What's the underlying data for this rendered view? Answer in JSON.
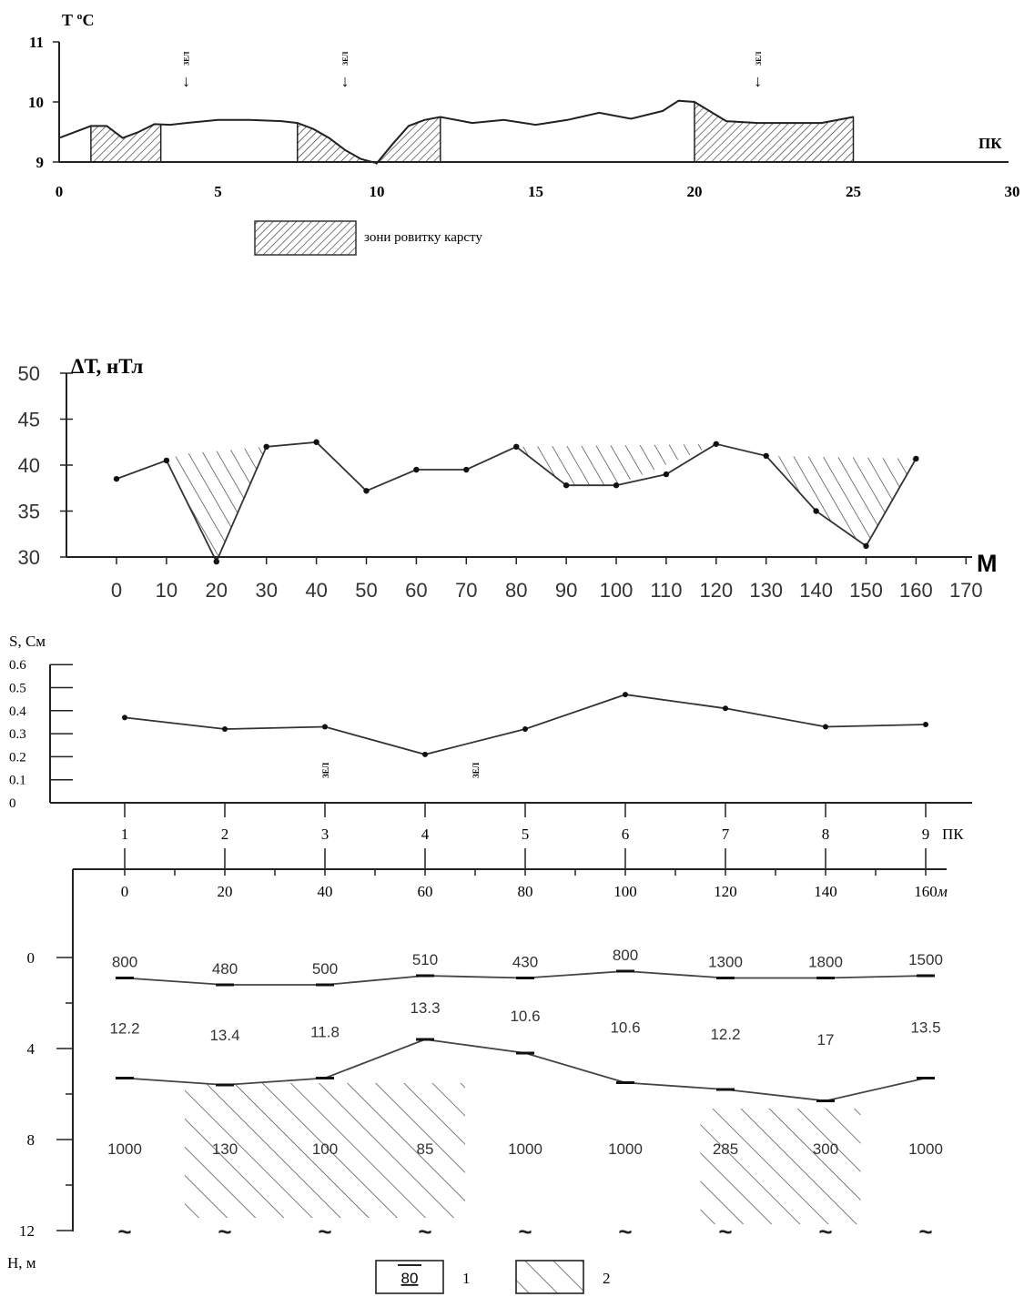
{
  "chart_data": [
    {
      "type": "area",
      "ylabel": "Т ºС",
      "xlabel": "ПК",
      "ylim": [
        9,
        11
      ],
      "xlim": [
        0,
        30
      ],
      "y_ticks": [
        "9",
        "10",
        "11"
      ],
      "x_ticks": [
        "0",
        "5",
        "10",
        "15",
        "20",
        "25",
        "30"
      ],
      "series": [
        {
          "x": [
            0,
            1,
            1.5,
            2,
            2.5,
            3,
            3.5,
            4,
            5,
            6,
            7,
            7.5,
            8,
            8.5,
            9,
            9.5,
            10,
            10.5,
            11,
            11.5,
            12,
            13,
            14,
            15,
            16,
            17,
            18,
            19,
            19.5,
            20,
            21,
            22,
            23,
            24,
            25
          ],
          "values": [
            9.4,
            9.6,
            9.6,
            9.4,
            9.5,
            9.63,
            9.62,
            9.65,
            9.7,
            9.7,
            9.68,
            9.65,
            9.55,
            9.4,
            9.2,
            9.05,
            8.98,
            9.3,
            9.6,
            9.7,
            9.75,
            9.65,
            9.7,
            9.62,
            9.7,
            9.82,
            9.72,
            9.85,
            10.02,
            10.0,
            9.68,
            9.65,
            9.65,
            9.65,
            9.75
          ]
        }
      ],
      "shaded_zones": [
        [
          1,
          3.2
        ],
        [
          7.5,
          10
        ],
        [
          10,
          12
        ],
        [
          20,
          25
        ]
      ],
      "markers": [
        {
          "x": 4,
          "label": "ЗЕЛ"
        },
        {
          "x": 9,
          "label": "ЗЕЛ"
        },
        {
          "x": 22,
          "label": "ЗЕЛ"
        }
      ],
      "legend": [
        {
          "label": "зони ровитку карсту"
        }
      ]
    },
    {
      "type": "line",
      "ylabel": "ΔТ, нТл",
      "xlabel": "М",
      "ylim": [
        30,
        50
      ],
      "xlim": [
        0,
        170
      ],
      "y_ticks": [
        "30",
        "35",
        "40",
        "45",
        "50"
      ],
      "x_ticks": [
        "0",
        "10",
        "20",
        "30",
        "40",
        "50",
        "60",
        "70",
        "80",
        "90",
        "100",
        "110",
        "120",
        "130",
        "140",
        "150",
        "160",
        "170"
      ],
      "series": [
        {
          "x": [
            0,
            10,
            20,
            30,
            40,
            50,
            60,
            70,
            80,
            90,
            100,
            110,
            120,
            130,
            140,
            150,
            160
          ],
          "values": [
            38.5,
            40.5,
            29.5,
            42,
            42.5,
            37.2,
            39.5,
            39.5,
            42,
            37.8,
            37.8,
            39,
            42.3,
            41,
            35,
            31.2,
            40.7
          ]
        }
      ]
    },
    {
      "type": "line",
      "ylabel": "S, См",
      "xlabel": "ПК",
      "ylim": [
        0,
        0.6
      ],
      "y_ticks": [
        "0",
        "0.1",
        "0.2",
        "0.3",
        "0.4",
        "0.5",
        "0.6"
      ],
      "x_ticks": [
        "1",
        "2",
        "3",
        "4",
        "5",
        "6",
        "7",
        "8",
        "9"
      ],
      "series": [
        {
          "x": [
            1,
            2,
            3,
            4,
            5,
            6,
            7,
            8,
            9
          ],
          "values": [
            0.37,
            0.32,
            0.33,
            0.21,
            0.32,
            0.47,
            0.41,
            0.33,
            0.34
          ]
        }
      ],
      "markers": [
        {
          "x": 3,
          "label": "ЗЕЛ"
        },
        {
          "x": 4.5,
          "label": "ЗЕЛ"
        }
      ]
    },
    {
      "type": "table",
      "ylabel": "Н, м",
      "xlabel": "м",
      "x_ticks": [
        "0",
        "20",
        "40",
        "60",
        "80",
        "100",
        "120",
        "140",
        "160"
      ],
      "y_ticks": [
        "0",
        "4",
        "8",
        "12"
      ],
      "x": [
        0,
        20,
        40,
        60,
        80,
        100,
        120,
        140,
        160
      ],
      "boundary1_depth": [
        0.9,
        1.2,
        1.2,
        0.8,
        0.9,
        0.6,
        0.9,
        0.9,
        0.8
      ],
      "boundary2_depth": [
        5.3,
        5.6,
        5.3,
        3.6,
        4.2,
        5.5,
        5.8,
        6.3,
        5.3
      ],
      "layer1_resistivity": [
        "800",
        "480",
        "500",
        "510",
        "430",
        "800",
        "1300",
        "1800",
        "1500"
      ],
      "layer2_resistivity": [
        "12.2",
        "13.4",
        "11.8",
        "13.3",
        "10.6",
        "10.6",
        "12.2",
        "17",
        "13.5"
      ],
      "layer3_resistivity": [
        "1000",
        "130",
        "100",
        "85",
        "1000",
        "1000",
        "285",
        "300",
        "1000"
      ],
      "shaded_zones": [
        [
          12,
          68
        ],
        [
          115,
          147
        ]
      ],
      "bottom_symbol": "~",
      "legend": [
        {
          "sample": "80",
          "label": "1"
        },
        {
          "label": "2"
        }
      ]
    }
  ]
}
